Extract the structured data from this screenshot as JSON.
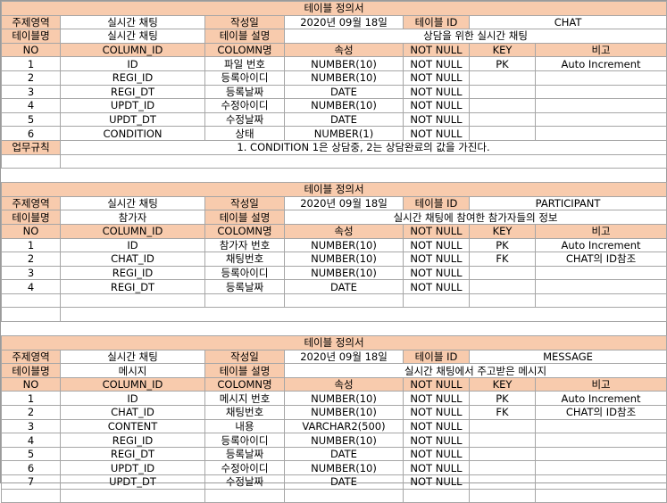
{
  "labels": {
    "doc_title": "테이블 정의서",
    "subject": "주제영역",
    "created": "작성일",
    "table_id": "테이블 ID",
    "table_name": "테이블명",
    "table_desc": "테이블 설명",
    "rule": "업무규칙",
    "col_headers": [
      "NO",
      "COLUMN_ID",
      "COLOMN명",
      "속성",
      "NOT NULL",
      "KEY",
      "비고"
    ]
  },
  "tables": [
    {
      "subject": "실시간 채팅",
      "date": "2020년 09월 18일",
      "id": "CHAT",
      "name": "실시간 채팅",
      "desc": "상담을 위한 실시간 채팅",
      "rows": [
        {
          "no": "1",
          "col": "ID",
          "name": "파일 번호",
          "type": "NUMBER(10)",
          "nn": "NOT NULL",
          "key": "PK",
          "note": "Auto Increment"
        },
        {
          "no": "2",
          "col": "REGI_ID",
          "name": "등록아이디",
          "type": "NUMBER(10)",
          "nn": "NOT NULL",
          "key": "",
          "note": ""
        },
        {
          "no": "3",
          "col": "REGI_DT",
          "name": "등록날짜",
          "type": "DATE",
          "nn": "NOT NULL",
          "key": "",
          "note": ""
        },
        {
          "no": "4",
          "col": "UPDT_ID",
          "name": "수정아이디",
          "type": "NUMBER(10)",
          "nn": "NOT NULL",
          "key": "",
          "note": ""
        },
        {
          "no": "5",
          "col": "UPDT_DT",
          "name": "수정날짜",
          "type": "DATE",
          "nn": "NOT NULL",
          "key": "",
          "note": ""
        },
        {
          "no": "6",
          "col": "CONDITION",
          "name": "상태",
          "type": "NUMBER(1)",
          "nn": "NOT NULL",
          "key": "",
          "note": ""
        }
      ],
      "rule": "1.  CONDITION 1은 상담중, 2는 상담완료의 값을 가진다."
    },
    {
      "subject": "실시간 채팅",
      "date": "2020년 09월 18일",
      "id": "PARTICIPANT",
      "name": "참가자",
      "desc": "실시간 채팅에 참여한 참가자들의 정보",
      "rows": [
        {
          "no": "1",
          "col": "ID",
          "name": "참가자 번호",
          "type": "NUMBER(10)",
          "nn": "NOT NULL",
          "key": "PK",
          "note": "Auto Increment"
        },
        {
          "no": "2",
          "col": "CHAT_ID",
          "name": "채팅번호",
          "type": "NUMBER(10)",
          "nn": "NOT NULL",
          "key": "FK",
          "note": "CHAT의 ID참조"
        },
        {
          "no": "3",
          "col": "REGI_ID",
          "name": "등록아이디",
          "type": "NUMBER(10)",
          "nn": "NOT NULL",
          "key": "",
          "note": ""
        },
        {
          "no": "4",
          "col": "REGI_DT",
          "name": "등록날짜",
          "type": "DATE",
          "nn": "NOT NULL",
          "key": "",
          "note": ""
        }
      ]
    },
    {
      "subject": "실시간 채팅",
      "date": "2020년 09월 18일",
      "id": "MESSAGE",
      "name": "메시지",
      "desc": "실시간 채팅에서 주고받은 메시지",
      "rows": [
        {
          "no": "1",
          "col": "ID",
          "name": "메시지 번호",
          "type": "NUMBER(10)",
          "nn": "NOT NULL",
          "key": "PK",
          "note": "Auto Increment"
        },
        {
          "no": "2",
          "col": "CHAT_ID",
          "name": "채팅번호",
          "type": "NUMBER(10)",
          "nn": "NOT NULL",
          "key": "FK",
          "note": "CHAT의 ID참조"
        },
        {
          "no": "3",
          "col": "CONTENT",
          "name": "내용",
          "type": "VARCHAR2(500)",
          "nn": "NOT NULL",
          "key": "",
          "note": ""
        },
        {
          "no": "4",
          "col": "REGI_ID",
          "name": "등록아이디",
          "type": "NUMBER(10)",
          "nn": "NOT NULL",
          "key": "",
          "note": ""
        },
        {
          "no": "5",
          "col": "REGI_DT",
          "name": "등록날짜",
          "type": "DATE",
          "nn": "NOT NULL",
          "key": "",
          "note": ""
        },
        {
          "no": "6",
          "col": "UPDT_ID",
          "name": "수정아이디",
          "type": "NUMBER(10)",
          "nn": "NOT NULL",
          "key": "",
          "note": ""
        },
        {
          "no": "7",
          "col": "UPDT_DT",
          "name": "수정날짜",
          "type": "DATE",
          "nn": "NOT NULL",
          "key": "",
          "note": ""
        }
      ]
    }
  ],
  "colors": {
    "header_fill": "#f8cbad",
    "border": "#a6a6a6"
  }
}
